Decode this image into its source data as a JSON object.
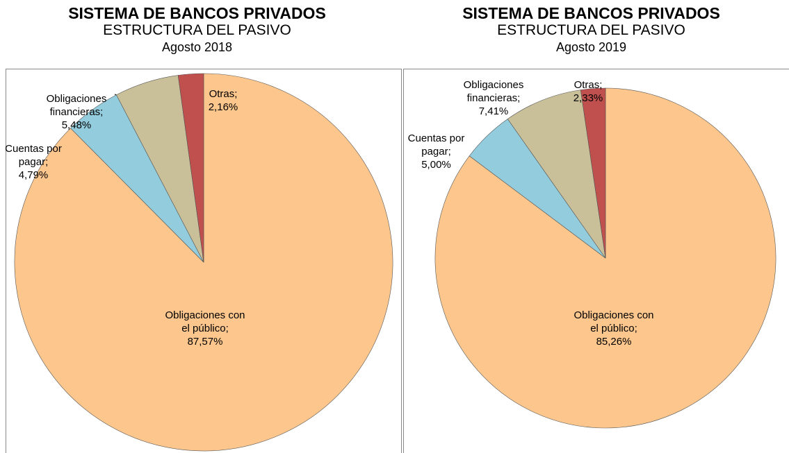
{
  "chart_data": [
    {
      "type": "pie",
      "title": "SISTEMA DE BANCOS PRIVADOS",
      "subtitle": "ESTRUCTURA DEL PASIVO",
      "period": "Agosto 2018",
      "categories": [
        "Obligaciones con el público;",
        "Cuentas por pagar;",
        "Obligaciones financieras;",
        "Otras;"
      ],
      "values": [
        87.57,
        4.79,
        5.48,
        2.16
      ],
      "value_labels": [
        "87,57%",
        "4,79%",
        "5,48%",
        "2,16%"
      ],
      "colors": [
        "#fcc68c",
        "#93cddd",
        "#c9c09a",
        "#c0504d"
      ]
    },
    {
      "type": "pie",
      "title": "SISTEMA DE BANCOS PRIVADOS",
      "subtitle": "ESTRUCTURA DEL PASIVO",
      "period": "Agosto 2019",
      "categories": [
        "Obligaciones con el público;",
        "Cuentas por pagar;",
        "Obligaciones financieras;",
        "Otras;"
      ],
      "values": [
        85.26,
        5.0,
        7.41,
        2.33
      ],
      "value_labels": [
        "85,26%",
        "5,00%",
        "7,41%",
        "2,33%"
      ],
      "colors": [
        "#fcc68c",
        "#93cddd",
        "#c9c09a",
        "#c0504d"
      ]
    }
  ]
}
